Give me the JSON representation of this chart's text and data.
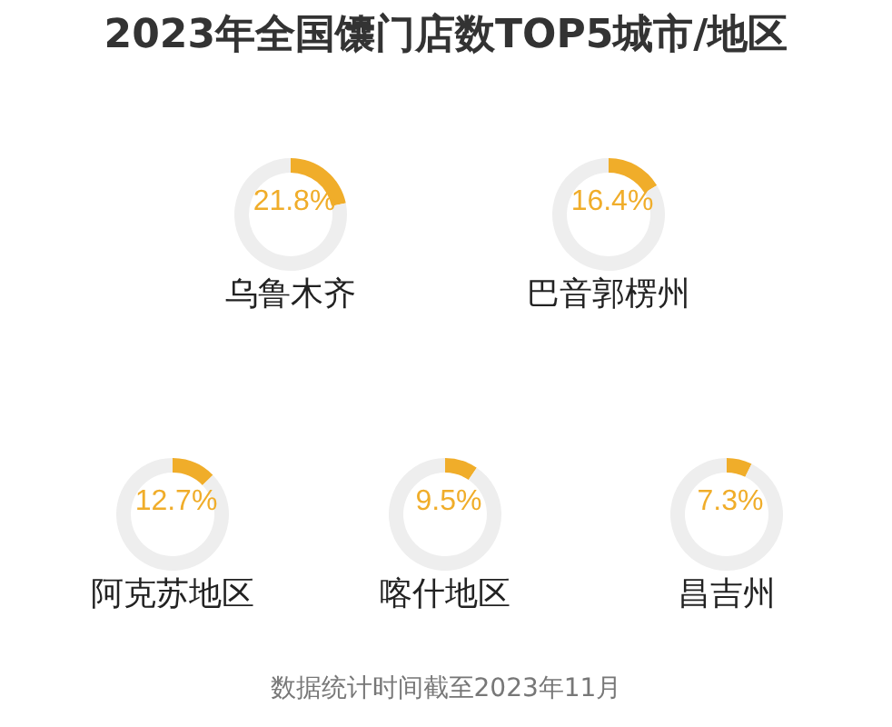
{
  "chart_data": [
    {
      "type": "donut",
      "title": "2023年全国馕门店数TOP5城市/地区",
      "subtitle": "乌鲁木齐",
      "categories": [
        null,
        null
      ],
      "values": [
        21.8,
        78.2
      ],
      "colors": [
        "#f0ad2a",
        "#eeeeee"
      ],
      "value_labels": [
        "21.8%",
        null
      ]
    },
    {
      "type": "donut",
      "subtitle": "巴音郭楞州",
      "categories": [
        null,
        null
      ],
      "values": [
        16.4,
        83.6
      ],
      "colors": [
        "#f0ad2a",
        "#eeeeee"
      ],
      "value_labels": [
        "16.4%",
        null
      ]
    },
    {
      "type": "donut",
      "subtitle": "阿克苏地区",
      "categories": [
        null,
        null
      ],
      "values": [
        12.7,
        87.3
      ],
      "colors": [
        "#f0ad2a",
        "#eeeeee"
      ],
      "value_labels": [
        "12.7%",
        null
      ]
    },
    {
      "type": "donut",
      "subtitle": "喀什地区",
      "categories": [
        null,
        null
      ],
      "values": [
        9.5,
        90.5
      ],
      "colors": [
        "#f0ad2a",
        "#eeeeee"
      ],
      "value_labels": [
        "9.5%",
        null
      ]
    },
    {
      "type": "donut",
      "subtitle": "昌吉州",
      "categories": [
        null,
        null
      ],
      "values": [
        7.3,
        92.7
      ],
      "colors": [
        "#f0ad2a",
        "#eeeeee"
      ],
      "value_labels": [
        "7.3%",
        null
      ],
      "annotations": [
        "数据统计时间截至2023年11月"
      ]
    }
  ]
}
